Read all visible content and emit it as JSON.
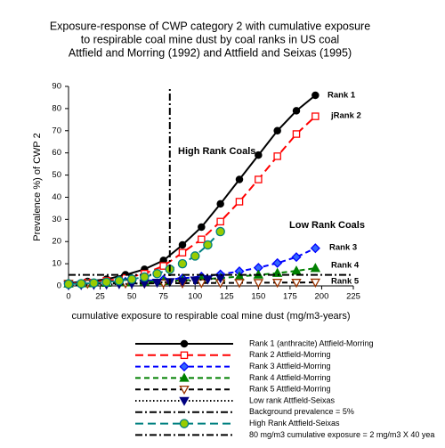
{
  "chart_data": {
    "type": "line",
    "title": [
      "Exposure-response of CWP category 2 with cumulative exposure",
      "to respirable coal mine dust by coal ranks in US coal",
      "Attfield and Morring (1992) and Attfield and Seixas (1995)"
    ],
    "xlabel": "cumulative exposure to respirable coal mine dust (mg/m3-years)",
    "ylabel": "Prevalence %) of CWP 2",
    "xlim": [
      0,
      225
    ],
    "ylim": [
      0,
      90
    ],
    "xticks": [
      0,
      25,
      50,
      75,
      100,
      125,
      150,
      175,
      200,
      225
    ],
    "yticks": [
      0,
      10,
      20,
      30,
      40,
      50,
      60,
      70,
      80,
      90
    ],
    "grid": false,
    "annotations": [
      "Rank 1",
      "jRank 2",
      "High Rank Coals",
      "Low Rank Coals",
      "Rank 3",
      "Rank 4",
      "Rank 5"
    ],
    "series": [
      {
        "name": "Rank 1 (anthracite) Attfield-Morring",
        "color": "#000000",
        "dash": "solid",
        "marker": "circle",
        "marker_fill": "#000000",
        "x": [
          0,
          15,
          30,
          45,
          60,
          75,
          90,
          105,
          120,
          135,
          150,
          165,
          180,
          195
        ],
        "values": [
          1.3,
          2,
          3,
          5,
          7.5,
          11.5,
          18.5,
          26.5,
          37,
          48,
          59,
          70,
          79,
          86
        ]
      },
      {
        "name": "Rank 2 Attfield-Morring",
        "color": "#ff0000",
        "dash": "long",
        "marker": "square",
        "marker_fill": "#ffffff",
        "x": [
          0,
          15,
          30,
          45,
          60,
          75,
          90,
          105,
          120,
          135,
          150,
          165,
          180,
          195
        ],
        "values": [
          1,
          1.5,
          2.3,
          3.5,
          5.5,
          9,
          15,
          21,
          29,
          38,
          48,
          58.5,
          68.5,
          76.5
        ]
      },
      {
        "name": "Rank 3 Attfield-Morring",
        "color": "#0000ff",
        "dash": "medium",
        "marker": "diamond",
        "marker_fill": "#3366ff",
        "x": [
          0,
          15,
          30,
          45,
          60,
          75,
          90,
          105,
          120,
          135,
          150,
          165,
          180,
          195
        ],
        "values": [
          1,
          1.2,
          1.5,
          1.9,
          2.3,
          2.8,
          3.4,
          4.2,
          5.2,
          6.6,
          8.2,
          10.3,
          13,
          17
        ]
      },
      {
        "name": "Rank 4 Attfield-Morring",
        "color": "#008000",
        "dash": "medium",
        "marker": "triangle-up",
        "marker_fill": "#008000",
        "x": [
          0,
          15,
          30,
          45,
          60,
          75,
          90,
          105,
          120,
          135,
          150,
          165,
          180,
          195
        ],
        "values": [
          1,
          1.1,
          1.3,
          1.5,
          1.8,
          2.1,
          2.5,
          3,
          3.5,
          4.2,
          5,
          5.8,
          6.8,
          8
        ]
      },
      {
        "name": "Rank 5 Attfield-Morring",
        "color": "#000000",
        "dash": "medium",
        "marker": "triangle-down",
        "marker_fill": "#ffffff",
        "marker_color": "#993300",
        "x": [
          0,
          15,
          30,
          45,
          60,
          75,
          90,
          105,
          120,
          135,
          150,
          165,
          180,
          195
        ],
        "values": [
          1,
          1,
          1,
          1.1,
          1.1,
          1.2,
          1.2,
          1.3,
          1.3,
          1.4,
          1.4,
          1.5,
          1.5,
          1.6
        ]
      },
      {
        "name": "Low rank  Attfield-Seixas",
        "color": "#000000",
        "dash": "dotted",
        "marker": "triangle-down",
        "marker_fill": "#000080",
        "marker_color": "#000080",
        "x": [
          0,
          10,
          20,
          30,
          40,
          50,
          60,
          70,
          80,
          90,
          100,
          110,
          120
        ],
        "values": [
          0.3,
          0.4,
          0.5,
          0.6,
          0.8,
          1,
          1.2,
          1.5,
          1.8,
          2.1,
          2.5,
          3,
          3.5
        ]
      },
      {
        "name": "Background prevalence = 5%",
        "color": "#000000",
        "dash": "dashdot",
        "marker": "none",
        "x": [
          0,
          225
        ],
        "values": [
          5,
          5
        ]
      },
      {
        "name": "High Rank  Attfield-Seixas",
        "color": "#008080",
        "dash": "long",
        "marker": "circle-cross",
        "marker_fill": "#99cc00",
        "x": [
          0,
          10,
          20,
          30,
          40,
          50,
          60,
          70,
          80,
          90,
          100,
          110,
          120
        ],
        "values": [
          0.8,
          1,
          1.3,
          1.7,
          2.3,
          3,
          4,
          5.5,
          7.5,
          10,
          13.5,
          18.5,
          24.5
        ]
      },
      {
        "name": "80 mg/m3 cumulative exposure = 2 mg/m3 X 40 yea",
        "color": "#000000",
        "dash": "dashdot",
        "marker": "none",
        "x": [
          80,
          80
        ],
        "values": [
          0,
          90
        ]
      }
    ]
  }
}
